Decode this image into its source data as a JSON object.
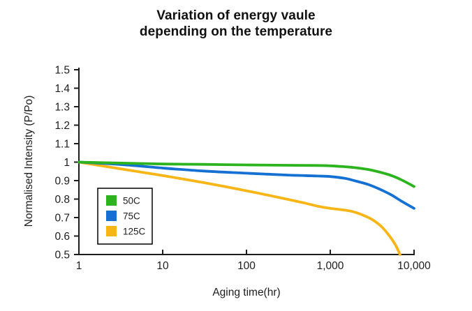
{
  "title": {
    "line1": "Variation of energy vaule",
    "line2": "depending on the temperature"
  },
  "chart_data": {
    "type": "line",
    "title": "Variation of energy vaule depending on the temperature",
    "xlabel": "Aging time(hr)",
    "ylabel": "Normalised Intensity (P/Po)",
    "x_scale": "log",
    "xlim": [
      1,
      10000
    ],
    "ylim": [
      0.5,
      1.5
    ],
    "x_ticks": [
      1,
      10,
      100,
      1000,
      10000
    ],
    "x_tick_labels": [
      "1",
      "10",
      "100",
      "1,000",
      "10,000"
    ],
    "y_ticks": [
      1.5,
      1.4,
      1.3,
      1.2,
      1.1,
      1,
      0.9,
      0.8,
      0.7,
      0.6,
      0.5
    ],
    "y_tick_labels": [
      "1.5",
      "1.4",
      "1.3",
      "1.2",
      "1.1",
      "1",
      "0.9",
      "0.8",
      "0.7",
      "0.6",
      "0.5"
    ],
    "grid": false,
    "legend_position": "inside top-left",
    "axis_color": "#1d1d1d",
    "series": [
      {
        "name": "50C",
        "color": "#2cb41e",
        "x": [
          1,
          3,
          10,
          30,
          100,
          300,
          700,
          1000,
          1500,
          2000,
          3000,
          5000,
          7000,
          10000
        ],
        "y": [
          1.0,
          0.995,
          0.99,
          0.988,
          0.985,
          0.983,
          0.982,
          0.98,
          0.975,
          0.97,
          0.958,
          0.932,
          0.905,
          0.868
        ]
      },
      {
        "name": "75C",
        "color": "#1470d2",
        "x": [
          1,
          3,
          10,
          30,
          100,
          300,
          700,
          1000,
          1500,
          2000,
          3000,
          5000,
          7000,
          10000
        ],
        "y": [
          1.0,
          0.988,
          0.968,
          0.952,
          0.94,
          0.93,
          0.925,
          0.922,
          0.912,
          0.898,
          0.875,
          0.83,
          0.79,
          0.75
        ]
      },
      {
        "name": "125C",
        "color": "#f7b616",
        "x": [
          1,
          3,
          10,
          30,
          100,
          300,
          500,
          700,
          1000,
          1500,
          2000,
          3000,
          4000,
          5000,
          6000,
          6800
        ],
        "y": [
          1.0,
          0.965,
          0.927,
          0.89,
          0.845,
          0.8,
          0.778,
          0.762,
          0.75,
          0.74,
          0.728,
          0.695,
          0.655,
          0.605,
          0.552,
          0.5
        ]
      }
    ]
  }
}
